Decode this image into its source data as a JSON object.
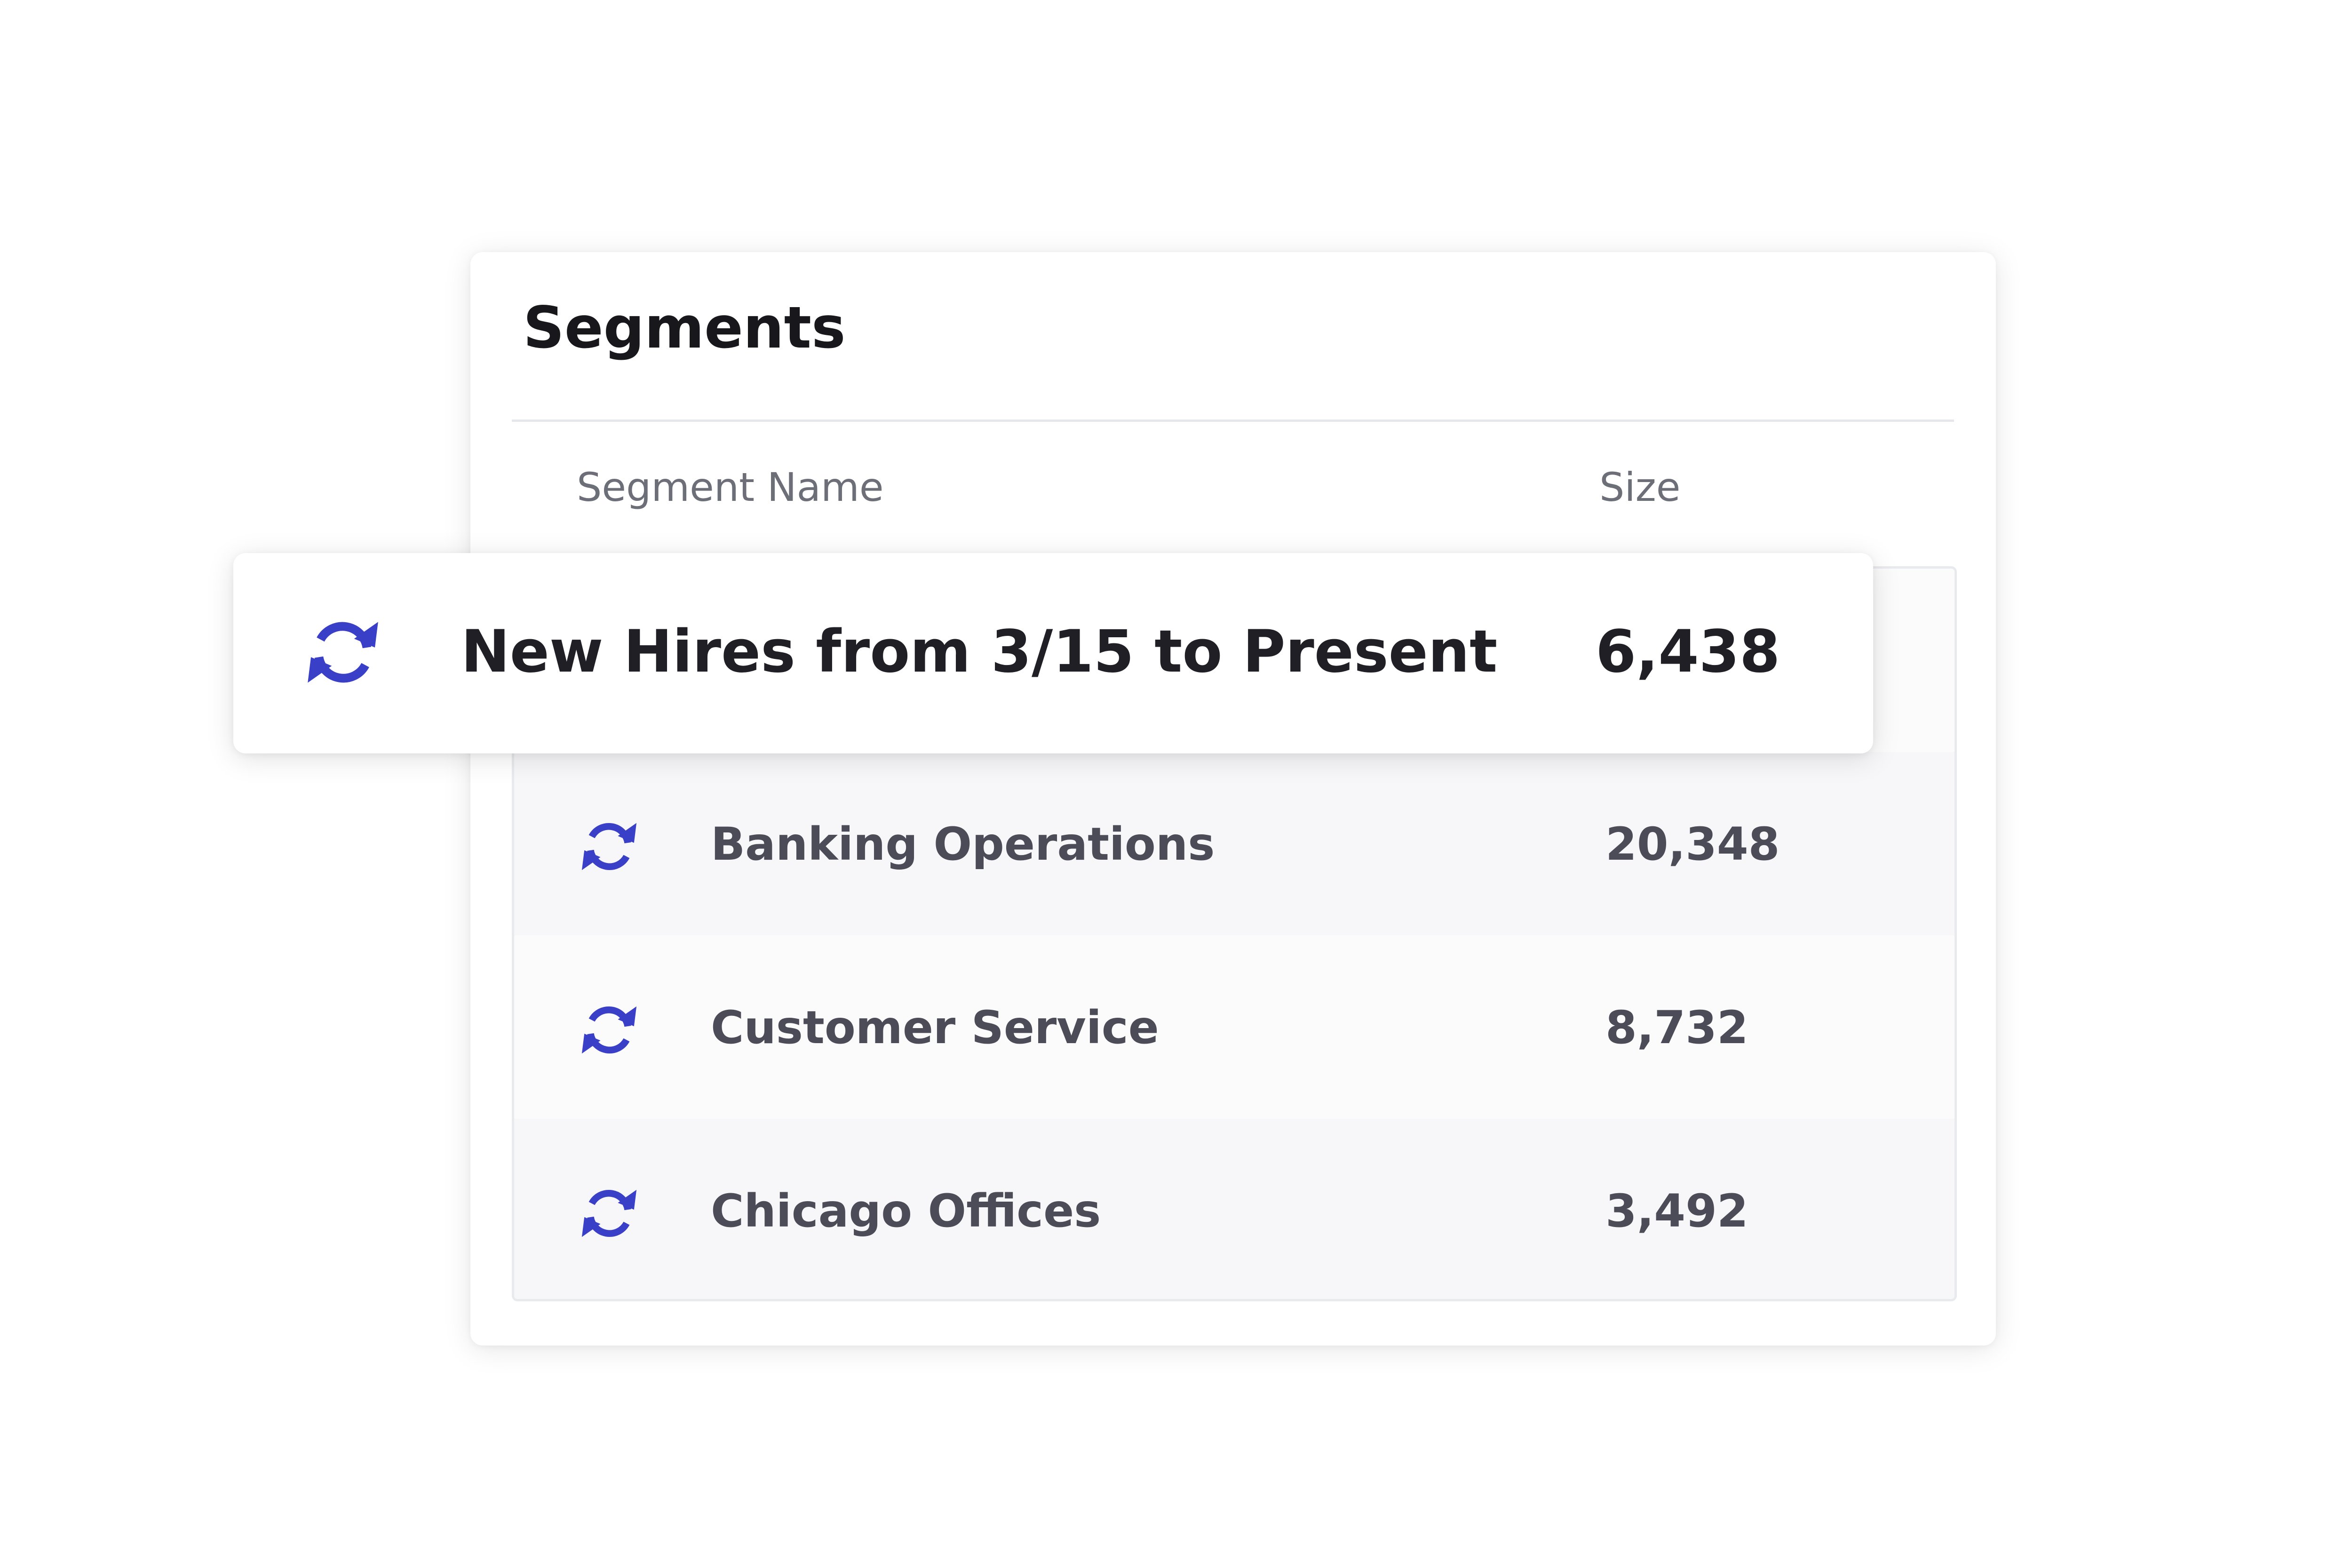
{
  "panel": {
    "title": "Segments",
    "columns": {
      "name": "Segment Name",
      "size": "Size"
    }
  },
  "highlighted_row": {
    "icon": "sync-icon",
    "name": "New Hires from 3/15 to Present",
    "size": "6,438"
  },
  "rows": [
    {
      "icon": "sync-icon",
      "name": "Banking Operations",
      "size": "20,348"
    },
    {
      "icon": "sync-icon",
      "name": "Customer Service",
      "size": "8,732"
    },
    {
      "icon": "sync-icon",
      "name": "Chicago Offices",
      "size": "3,492"
    }
  ],
  "colors": {
    "accent": "#3a3fc8",
    "text_primary": "#1f1f25",
    "text_secondary": "#4b4c57",
    "header_text": "#6c6e78"
  }
}
